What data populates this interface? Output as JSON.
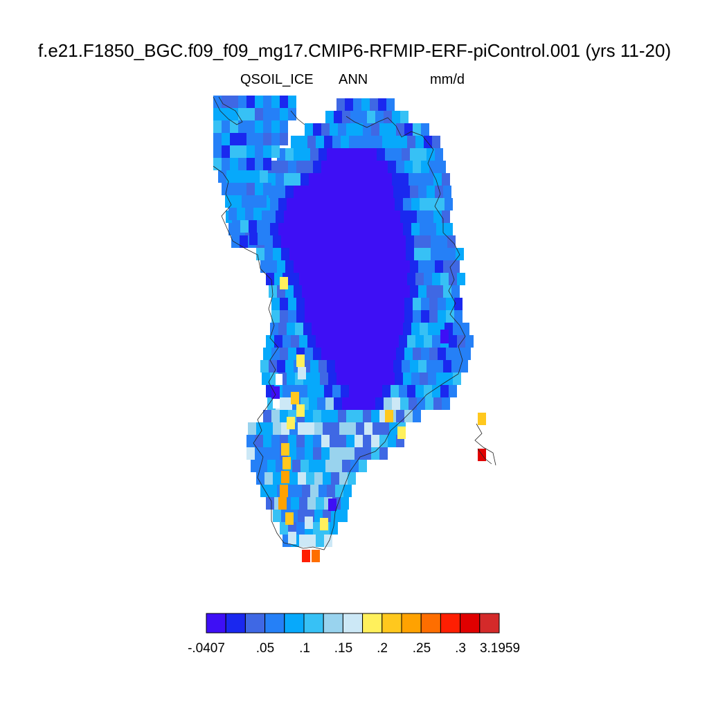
{
  "title": "f.e21.F1850_BGC.f09_f09_mg17.CMIP6-RFMIP-ERF-piControl.001 (yrs 11-20)",
  "variable": "QSOIL_ICE",
  "period": "ANN",
  "units": "mm/d",
  "colorbar": {
    "colors": [
      "#3e0ff5",
      "#1a28ef",
      "#3f68e4",
      "#2580f7",
      "#07a9fb",
      "#37c1f5",
      "#99d3ee",
      "#cce8f6",
      "#fff05c",
      "#ffc81e",
      "#ffa201",
      "#fe6e00",
      "#fe1f02",
      "#e00000",
      "#d42a2a"
    ],
    "tick_labels": [
      ".0407",
      "",
      ".05",
      ".1",
      ".15",
      ".2",
      ".25",
      ".3",
      "3.1959"
    ],
    "min_label": "-.0407"
  },
  "map": {
    "region": "Greenland",
    "field_levels": "15-class filled grid cells",
    "coastline": true
  }
}
